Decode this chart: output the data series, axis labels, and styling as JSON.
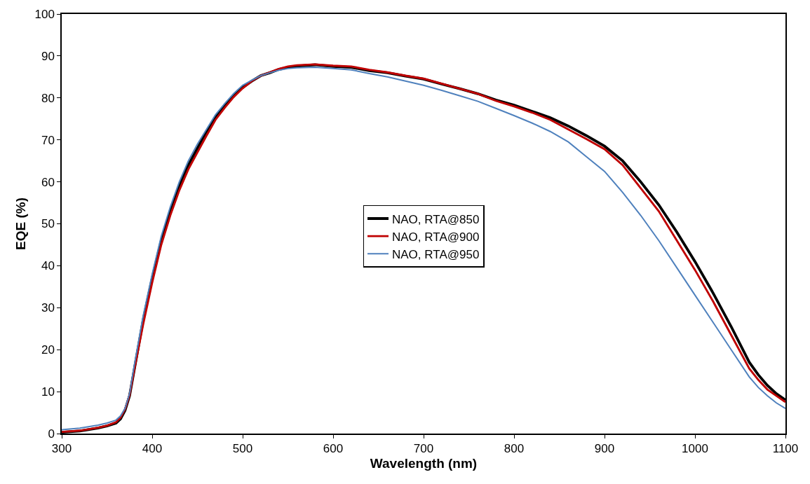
{
  "chart_data": {
    "type": "line",
    "xlabel": "Wavelength (nm)",
    "ylabel": "EQE (%)",
    "x": [
      300,
      320,
      340,
      350,
      360,
      365,
      370,
      375,
      380,
      390,
      400,
      410,
      420,
      430,
      440,
      450,
      460,
      470,
      480,
      490,
      500,
      510,
      520,
      530,
      540,
      550,
      560,
      580,
      600,
      620,
      640,
      660,
      680,
      700,
      720,
      740,
      760,
      780,
      800,
      820,
      840,
      860,
      880,
      900,
      920,
      940,
      960,
      980,
      1000,
      1020,
      1040,
      1060,
      1070,
      1080,
      1090,
      1100
    ],
    "series": [
      {
        "name": "NAO, RTA@850",
        "color": "#000000",
        "values": [
          0.3,
          0.6,
          1.3,
          1.8,
          2.5,
          3.5,
          5.5,
          9,
          15,
          27,
          37,
          46,
          53,
          59,
          64,
          68,
          72,
          75.5,
          78,
          80.5,
          82.5,
          84,
          85.3,
          86,
          86.8,
          87.3,
          87.6,
          87.9,
          87.5,
          87.3,
          86.5,
          86,
          85.2,
          84.5,
          83.3,
          82.2,
          81,
          79.5,
          78.3,
          76.8,
          75.3,
          73.3,
          71,
          68.5,
          65,
          60,
          54.5,
          48,
          41,
          33.5,
          25.5,
          17,
          14,
          11.5,
          9.5,
          8
        ]
      },
      {
        "name": "NAO, RTA@900",
        "color": "#c00000",
        "values": [
          0.4,
          0.7,
          1.4,
          1.9,
          2.7,
          3.8,
          5.8,
          9.2,
          15,
          26,
          36,
          45,
          52,
          58,
          63,
          67,
          71,
          74.8,
          77.6,
          80.2,
          82.3,
          84,
          85.3,
          86.1,
          86.9,
          87.5,
          87.8,
          88,
          87.7,
          87.5,
          86.7,
          86.1,
          85.3,
          84.6,
          83.4,
          82.2,
          81,
          79.3,
          78,
          76.5,
          74.8,
          72.5,
          70.2,
          67.8,
          64,
          58.5,
          53,
          46,
          39,
          31.5,
          23.5,
          15.5,
          12.8,
          10.5,
          9,
          7.5
        ]
      },
      {
        "name": "NAO, RTA@950",
        "color": "#4f81bd",
        "values": [
          0.9,
          1.3,
          2,
          2.5,
          3.2,
          4.2,
          6,
          9.5,
          16,
          28,
          38,
          47,
          54,
          60,
          65,
          69,
          72.5,
          76,
          78.6,
          81,
          83,
          84.2,
          85.3,
          86,
          86.6,
          87,
          87.2,
          87.3,
          87,
          86.7,
          85.8,
          85,
          84,
          83,
          81.8,
          80.5,
          79.2,
          77.5,
          75.8,
          74,
          72,
          69.5,
          66,
          62.5,
          57.5,
          52,
          46,
          39.5,
          33,
          26.5,
          20,
          13.5,
          11,
          9,
          7.3,
          6
        ]
      }
    ],
    "xlim": [
      300,
      1100
    ],
    "xticks": [
      300,
      400,
      500,
      600,
      700,
      800,
      900,
      1000,
      1100
    ],
    "ylim": [
      0,
      100
    ],
    "yticks": [
      0,
      10,
      20,
      30,
      40,
      50,
      60,
      70,
      80,
      90,
      100
    ],
    "grid": false,
    "legend": "center",
    "marker": "none",
    "line_style": "solid"
  }
}
